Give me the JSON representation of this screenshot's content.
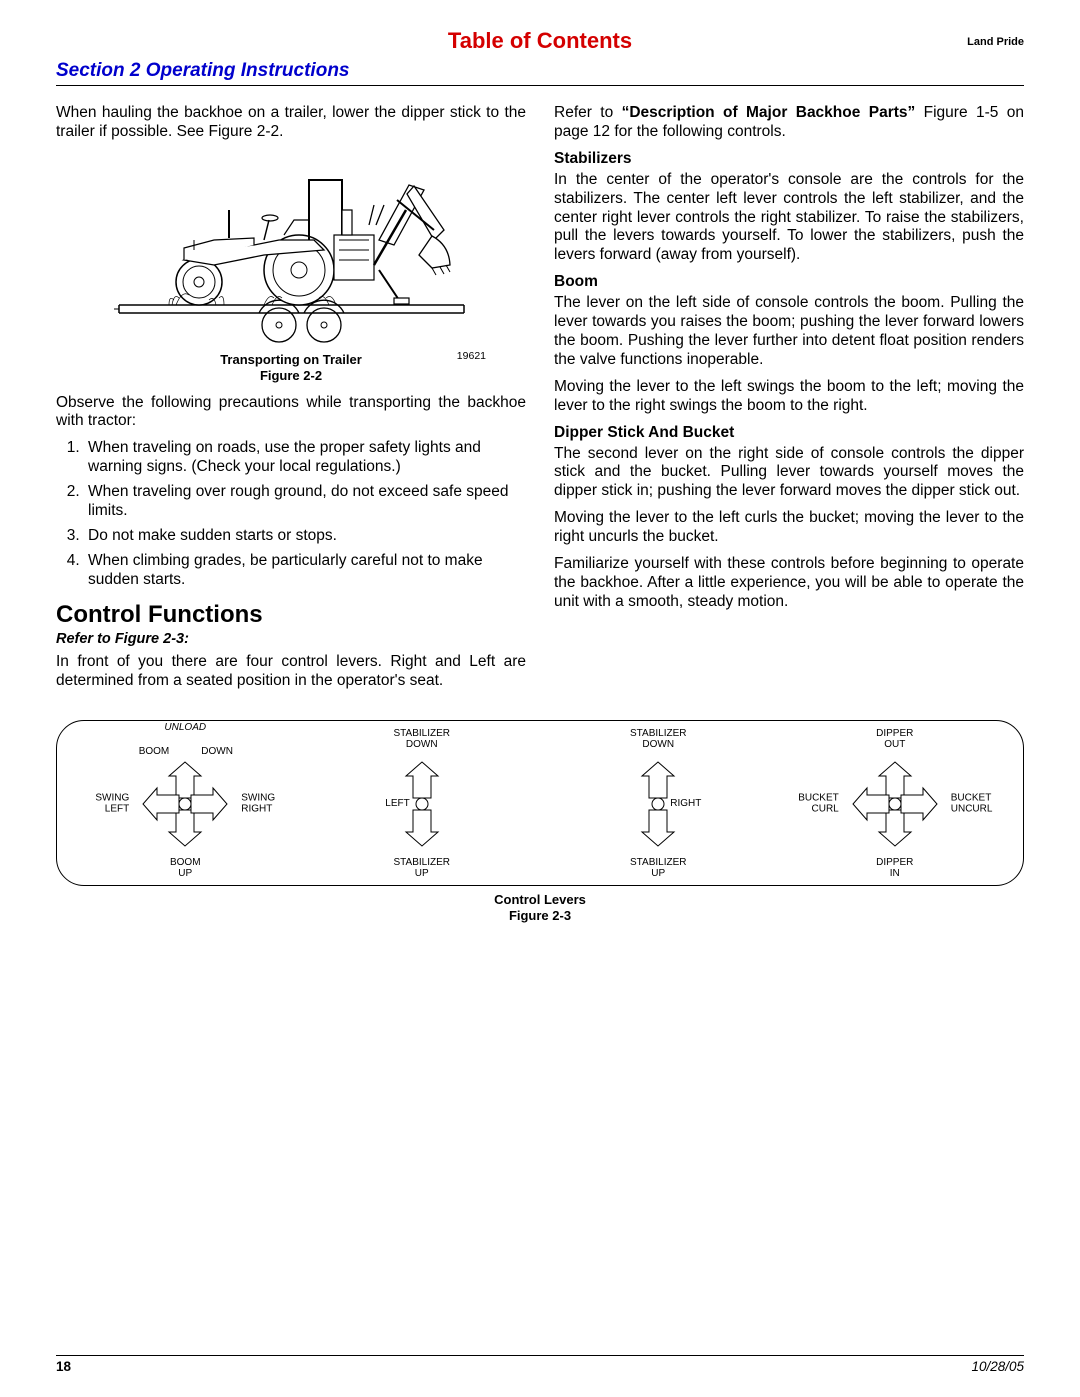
{
  "header": {
    "toc": "Table of Contents",
    "brand": "Land Pride",
    "section": "Section 2 Operating Instructions"
  },
  "left": {
    "intro": "When hauling the backhoe on a trailer, lower the dipper stick to the trailer if possible. See Figure 2-2.",
    "fig22_caption": "Transporting on Trailer",
    "fig22_label": "Figure 2-2",
    "fig22_num": "19621",
    "observe": "Observe the following precautions while transporting the backhoe with tractor:",
    "precautions": [
      "When traveling on roads, use the proper safety lights and warning signs. (Check your local regulations.)",
      "When traveling over rough ground, do not exceed safe speed limits.",
      "Do not make sudden starts or stops.",
      "When climbing grades, be particularly careful not to make sudden starts."
    ],
    "control_heading": "Control Functions",
    "refer": "Refer to Figure 2-3:",
    "control_intro": "In front of you there are four control levers. Right and Left are determined from a seated position in the operator's seat."
  },
  "right": {
    "refer_prefix": "Refer to ",
    "refer_bold": "“Description of Major Backhoe Parts”",
    "refer_suffix": " Figure 1-5 on page 12 for the following controls.",
    "stabilizers_head": "Stabilizers",
    "stabilizers_body": "In the center of the operator's console are the controls for the stabilizers. The center left lever controls the left stabilizer, and the center right lever controls the right stabilizer. To raise the stabilizers, pull the levers towards yourself. To lower the stabilizers, push the levers forward (away from yourself).",
    "boom_head": "Boom",
    "boom_body1": "The lever on the left side of console controls the boom. Pulling the lever towards you raises the boom; pushing the lever forward lowers the boom. Pushing the lever further into detent float position renders the valve functions inoperable.",
    "boom_body2": "Moving the lever to the left swings the boom to the left; moving the lever to the right swings the boom to the right.",
    "dipper_head": "Dipper Stick And Bucket",
    "dipper_body1": "The second lever on the right side of console controls the dipper stick and the bucket. Pulling lever towards yourself moves the dipper stick in; pushing the lever forward moves the dipper stick out.",
    "dipper_body2": "Moving the lever to the left curls the bucket; moving the lever to the right uncurls the bucket.",
    "dipper_body3": "Familiarize yourself with these controls before beginning to operate the backhoe. After a little experience, you will be able to operate the unit with a smooth, steady motion."
  },
  "levers": [
    {
      "type": "four",
      "top_over": "UNLOAD",
      "top": "BOOM\nDOWN",
      "bottom": "BOOM\nUP",
      "left": "SWING\nLEFT",
      "right": "SWING\nRIGHT"
    },
    {
      "type": "two",
      "top": "STABILIZER\nDOWN",
      "bottom": "STABILIZER\nUP",
      "left": "LEFT"
    },
    {
      "type": "two",
      "top": "STABILIZER\nDOWN",
      "bottom": "STABILIZER\nUP",
      "right": "RIGHT"
    },
    {
      "type": "four",
      "top": "DIPPER\nOUT",
      "bottom": "DIPPER\nIN",
      "left": "BUCKET\nCURL",
      "right": "BUCKET\nUNCURL"
    }
  ],
  "control_caption": "Control Levers",
  "control_fig": "Figure 2-3",
  "footer": {
    "page": "18",
    "date": "10/28/05"
  }
}
